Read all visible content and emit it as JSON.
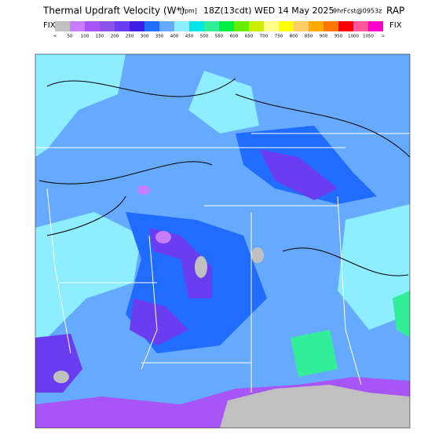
{
  "header": {
    "title": "Thermal Updraft Velocity (W*)",
    "units": "[fpm]",
    "valid": "18Z(13cdt) WED 14 May 2025",
    "forecast": "9hrFcst@0953z",
    "model": "RAP"
  },
  "colorbar": {
    "left_label": "FIX",
    "right_label": "FIX",
    "labels": [
      "<",
      50,
      100,
      150,
      200,
      250,
      300,
      350,
      400,
      450,
      500,
      550,
      600,
      650,
      700,
      750,
      800,
      850,
      900,
      950,
      1000,
      1050,
      ">"
    ],
    "colors": [
      "#c0c0c0",
      "#c77dff",
      "#a855f7",
      "#8a52e8",
      "#6a3df0",
      "#3c1ee6",
      "#1f6cff",
      "#66aaff",
      "#8ceeff",
      "#00e6e6",
      "#33ee99",
      "#00ee44",
      "#66ee00",
      "#ccee00",
      "#ffff88",
      "#ffff00",
      "#ffcc66",
      "#ffaa00",
      "#ff7700",
      "#ff0000",
      "#ff5599",
      "#ff00cc"
    ]
  }
}
